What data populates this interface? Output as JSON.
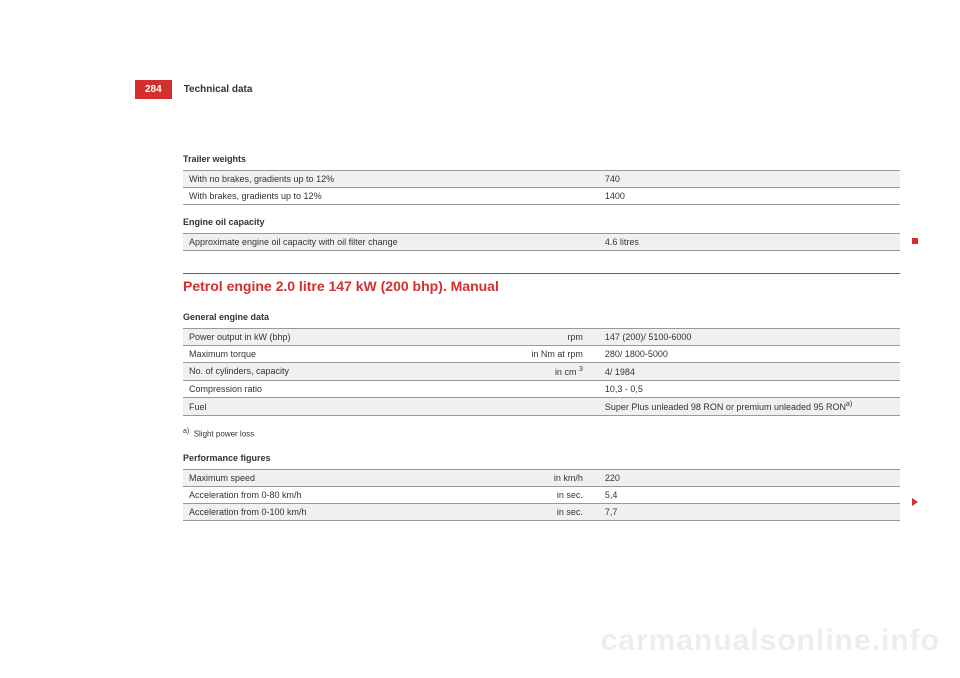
{
  "page_number": "284",
  "section_header": "Technical data",
  "trailer_weights": {
    "title": "Trailer weights",
    "rows": [
      {
        "label": "With no brakes, gradients up to 12%",
        "value": "740"
      },
      {
        "label": "With brakes, gradients up to 12%",
        "value": "1400"
      }
    ]
  },
  "engine_oil": {
    "title": "Engine oil capacity",
    "rows": [
      {
        "label": "Approximate engine oil capacity with oil filter change",
        "value": "4.6 litres"
      }
    ]
  },
  "main_section_title": "Petrol engine 2.0 litre 147 kW (200 bhp). Manual",
  "general_engine": {
    "title": "General engine data",
    "rows": [
      {
        "label": "Power output in kW (bhp)",
        "unit": "rpm",
        "value": "147 (200)/ 5100-6000"
      },
      {
        "label": "Maximum torque",
        "unit": "in Nm at rpm",
        "value": "280/ 1800-5000"
      },
      {
        "label": "No. of cylinders, capacity",
        "unit_html": "in cm <sup>3</sup>",
        "value": "4/ 1984"
      },
      {
        "label": "Compression ratio",
        "unit": "",
        "value": "10,3 - 0,5"
      },
      {
        "label": "Fuel",
        "unit": "",
        "value_html": "Super Plus unleaded 98 RON or premium unleaded 95 RON<sup>a)</sup>"
      }
    ]
  },
  "footnote": {
    "marker": "a)",
    "text": "Slight power loss"
  },
  "performance": {
    "title": "Performance figures",
    "rows": [
      {
        "label": "Maximum speed",
        "unit": "in km/h",
        "value": "220"
      },
      {
        "label": "Acceleration from 0-80 km/h",
        "unit": "in sec.",
        "value": "5,4"
      },
      {
        "label": "Acceleration from 0-100 km/h",
        "unit": "in sec.",
        "value": "7,7"
      }
    ]
  },
  "watermark": "carmanualsonline.info"
}
